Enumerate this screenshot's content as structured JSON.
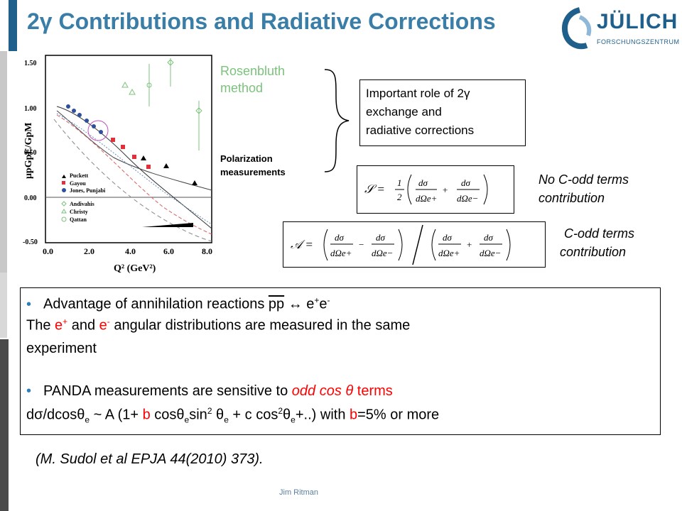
{
  "header": {
    "title": "2γ Contributions and Radiative Corrections",
    "logo_name": "JÜLICH",
    "logo_sub": "FORSCHUNGSZENTRUM"
  },
  "figure": {
    "yaxis_ticks": [
      "1.50",
      "1.00",
      "0.50",
      "0.00",
      "-0.50"
    ],
    "xaxis_ticks": [
      "0.0",
      "2.0",
      "4.0",
      "6.0",
      "8.0"
    ],
    "ylabel": "μpGpE/GpM",
    "xlabel": "Q² (GeV²)",
    "legend_filled": [
      "Puckett",
      "Gayou",
      "Jones, Punjabi"
    ],
    "legend_open": [
      "Andivahis",
      "Christy",
      "Qattan"
    ]
  },
  "annotations": {
    "rosenbluth_1": "Rosenbluth",
    "rosenbluth_2": "method",
    "polarization_1": "Polarization",
    "polarization_2": "measurements",
    "important_1": "Important role of 2γ",
    "important_2": "exchange and",
    "important_3": "radiative corrections",
    "no_codd_1": "No C-odd terms",
    "no_codd_2": "contribution",
    "codd_1": "C-odd terms",
    "codd_2": "contribution"
  },
  "main": {
    "advantage_text": "Advantage of  annihilation reactions   ",
    "reaction_pp": "pp",
    "reaction_arrow": " ↔ e",
    "reaction_plus": "+",
    "reaction_e": "e",
    "reaction_minus": "-",
    "line2_a": "The ",
    "line2_e": "e",
    "line2_plus": "+",
    "line2_and": " and  ",
    "line2_e2": "e",
    "line2_minus": "-",
    "line2_b": "  angular distributions  are measured in the same",
    "line3": "experiment",
    "panda_a": "PANDA measurements are sensitive to ",
    "panda_odd": "odd cos θ",
    "panda_b": " terms",
    "formula_a": "dσ/dcosθ",
    "formula_e1": "e",
    "formula_b": " ~ A (1+ ",
    "formula_b_coef": "b",
    "formula_c": " cosθ",
    "formula_e2": "e",
    "formula_sin": "sin",
    "formula_2a": "2",
    "formula_theta": " θ",
    "formula_e3": "e",
    "formula_d": " + c cos",
    "formula_2b": "2",
    "formula_theta2": "θ",
    "formula_e4": "e",
    "formula_end": "+..)   with ",
    "formula_b2": "b",
    "formula_tail": "=5% or more"
  },
  "reference": "(M. Sudol et al EPJA 44(2010) 373).",
  "footer": "Jim Ritman",
  "colors": {
    "title": "#3a7ea8",
    "accent": "#1f5f8b",
    "red": "#ff0000",
    "green": "#7cc27c"
  }
}
